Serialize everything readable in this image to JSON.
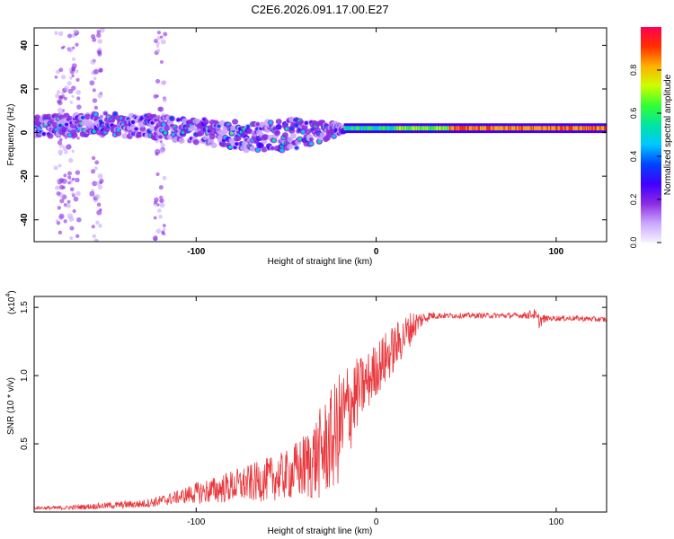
{
  "title": "C2E6.2026.091.17.00.E27",
  "chart_data": [
    {
      "type": "heatmap",
      "title": "C2E6.2026.091.17.00.E27",
      "xlabel": "Height of straight line (km)",
      "ylabel": "Frequency (Hz)",
      "xlim": [
        -190,
        128
      ],
      "ylim": [
        -50,
        48
      ],
      "xticks": [
        -100,
        0,
        100
      ],
      "yticks": [
        -40,
        -20,
        0,
        20,
        40
      ],
      "xtick_labels": [
        "-100",
        "0",
        "100"
      ],
      "ytick_labels": [
        "-40",
        "-20",
        "0",
        "20",
        "40"
      ],
      "colorbar": {
        "label": "Normalized spectral amplitude",
        "range": [
          0,
          1
        ],
        "ticks": [
          0.0,
          0.2,
          0.4,
          0.6,
          0.8
        ],
        "tick_labels": [
          "0.0",
          "0.2",
          "0.4",
          "0.6",
          "0.8"
        ],
        "colormap": [
          "#f7f2ff",
          "#c9a6ff",
          "#8a2be2",
          "#3f00ff",
          "#0044ff",
          "#00c8ff",
          "#00e5a0",
          "#33ff33",
          "#ccff00",
          "#ffb000",
          "#ff3000",
          "#ff0050"
        ]
      },
      "band_trend": [
        {
          "x": -190,
          "f": 3,
          "spread": 6
        },
        {
          "x": -150,
          "f": 4,
          "spread": 6
        },
        {
          "x": -100,
          "f": 1,
          "spread": 7
        },
        {
          "x": -70,
          "f": -2,
          "spread": 8
        },
        {
          "x": -45,
          "f": -1,
          "spread": 9
        },
        {
          "x": -30,
          "f": 0,
          "spread": 6
        },
        {
          "x": -20,
          "f": 2,
          "spread": 3
        },
        {
          "x": 0,
          "f": 2,
          "spread": 2
        },
        {
          "x": 50,
          "f": 2,
          "spread": 2
        },
        {
          "x": 128,
          "f": 2,
          "spread": 2
        }
      ]
    },
    {
      "type": "line",
      "title": "",
      "xlabel": "Height of straight line (km)",
      "ylabel": "SNR (10 * v/v)",
      "y_multiplier_label": "(x10",
      "y_multiplier_exponent": "4",
      "xlim": [
        -190,
        128
      ],
      "ylim": [
        0,
        1.58
      ],
      "xticks": [
        -100,
        0,
        100
      ],
      "yticks": [
        0.5,
        1.0,
        1.5
      ],
      "xtick_labels": [
        "-100",
        "0",
        "100"
      ],
      "ytick_labels": [
        "0.5",
        "1.0",
        "1.5"
      ],
      "color": "#e8383d",
      "series": [
        {
          "name": "SNR",
          "x": [
            -190,
            -175,
            -160,
            -145,
            -130,
            -120,
            -110,
            -100,
            -90,
            -80,
            -70,
            -60,
            -50,
            -40,
            -35,
            -30,
            -25,
            -20,
            -17,
            -15,
            -12,
            -10,
            -5,
            0,
            5,
            10,
            15,
            20,
            25,
            30,
            40,
            60,
            80,
            88,
            90,
            95,
            110,
            128
          ],
          "y": [
            0.03,
            0.03,
            0.04,
            0.05,
            0.06,
            0.08,
            0.11,
            0.14,
            0.16,
            0.19,
            0.21,
            0.24,
            0.27,
            0.33,
            0.38,
            0.44,
            0.52,
            0.62,
            0.7,
            0.78,
            0.84,
            0.88,
            0.95,
            1.05,
            1.12,
            1.2,
            1.28,
            1.36,
            1.41,
            1.44,
            1.44,
            1.44,
            1.44,
            1.45,
            1.4,
            1.42,
            1.42,
            1.41
          ],
          "noise": [
            0.01,
            0.015,
            0.02,
            0.025,
            0.03,
            0.04,
            0.05,
            0.08,
            0.1,
            0.12,
            0.14,
            0.16,
            0.18,
            0.25,
            0.3,
            0.35,
            0.38,
            0.42,
            0.4,
            0.38,
            0.3,
            0.25,
            0.22,
            0.2,
            0.2,
            0.18,
            0.15,
            0.12,
            0.06,
            0.03,
            0.02,
            0.02,
            0.02,
            0.04,
            0.06,
            0.02,
            0.02,
            0.02
          ]
        }
      ]
    }
  ]
}
